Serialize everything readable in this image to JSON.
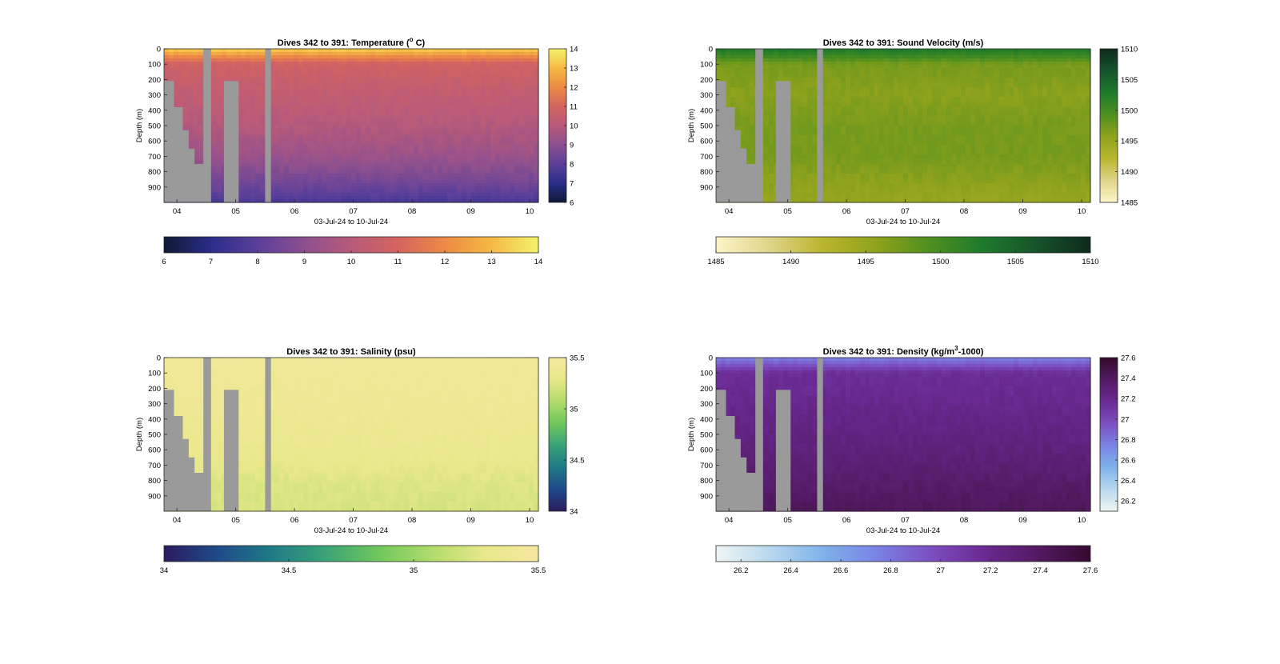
{
  "chart_data": [
    {
      "type": "heatmap",
      "title": "Dives 342 to 391: Temperature (° C)",
      "title_parts": {
        "main": "Dives 342 to 391: Temperature (",
        "sup": "o",
        "tail": " C)"
      },
      "xlabel": "03-Jul-24 to 10-Jul-24",
      "ylabel": "Depth (m)",
      "x_ticks": [
        "04",
        "05",
        "06",
        "07",
        "08",
        "09",
        "10"
      ],
      "y_ticks": [
        "0",
        "100",
        "200",
        "300",
        "400",
        "500",
        "600",
        "700",
        "800",
        "900"
      ],
      "ylim": [
        0,
        1000
      ],
      "colorbar": {
        "min": 6,
        "max": 14,
        "ticks": [
          "6",
          "7",
          "8",
          "9",
          "10",
          "11",
          "12",
          "13",
          "14"
        ],
        "colors": [
          "#0d1a33",
          "#2a2d8a",
          "#5b3f9a",
          "#8c4f8f",
          "#b85a7a",
          "#d4645f",
          "#ec8a45",
          "#f6b943",
          "#f3f36b"
        ]
      },
      "profile": [
        [
          0,
          13.5
        ],
        [
          30,
          12.6
        ],
        [
          70,
          11.5
        ],
        [
          100,
          10.8
        ],
        [
          300,
          10.3
        ],
        [
          500,
          9.9
        ],
        [
          700,
          9.3
        ],
        [
          850,
          8.6
        ],
        [
          950,
          8.0
        ],
        [
          1000,
          7.6
        ]
      ],
      "gaps": [
        {
          "day": 4.45,
          "width": 0.13,
          "from": 0,
          "to": 1000
        },
        {
          "day": 5.5,
          "width": 0.1,
          "from": 0,
          "to": 1000
        }
      ],
      "ground": [
        [
          3.85,
          210
        ],
        [
          3.95,
          380
        ],
        [
          4.1,
          530
        ],
        [
          4.2,
          650
        ],
        [
          4.3,
          750
        ],
        [
          4.57,
          960
        ],
        [
          4.8,
          210
        ],
        [
          5.05,
          210
        ]
      ]
    },
    {
      "type": "heatmap",
      "title": "Dives 342 to 391: Sound Velocity (m/s)",
      "xlabel": "03-Jul-24 to 10-Jul-24",
      "ylabel": "Depth (m)",
      "x_ticks": [
        "04",
        "05",
        "06",
        "07",
        "08",
        "09",
        "10"
      ],
      "y_ticks": [
        "0",
        "100",
        "200",
        "300",
        "400",
        "500",
        "600",
        "700",
        "800",
        "900"
      ],
      "ylim": [
        0,
        1000
      ],
      "colorbar": {
        "min": 1485,
        "max": 1510,
        "ticks": [
          "1485",
          "1490",
          "1495",
          "1500",
          "1505",
          "1510"
        ],
        "colors": [
          "#fcf5c8",
          "#e0d48a",
          "#b9b52d",
          "#8fa21c",
          "#4e8f1f",
          "#1e7a2c",
          "#16532b",
          "#0f2a1b"
        ]
      },
      "profile": [
        [
          0,
          1503
        ],
        [
          40,
          1501
        ],
        [
          100,
          1497
        ],
        [
          300,
          1496
        ],
        [
          500,
          1497
        ],
        [
          700,
          1497
        ],
        [
          850,
          1496
        ],
        [
          1000,
          1495
        ]
      ],
      "gaps": [
        {
          "day": 4.45,
          "width": 0.13,
          "from": 0,
          "to": 1000
        },
        {
          "day": 5.5,
          "width": 0.1,
          "from": 0,
          "to": 1000
        }
      ],
      "ground": [
        [
          3.85,
          210
        ],
        [
          3.95,
          380
        ],
        [
          4.1,
          530
        ],
        [
          4.2,
          650
        ],
        [
          4.3,
          750
        ],
        [
          4.57,
          960
        ],
        [
          4.8,
          210
        ],
        [
          5.05,
          210
        ]
      ]
    },
    {
      "type": "heatmap",
      "title": "Dives 342 to 391: Salinity (psu)",
      "xlabel": "03-Jul-24 to 10-Jul-24",
      "ylabel": "Depth (m)",
      "x_ticks": [
        "04",
        "05",
        "06",
        "07",
        "08",
        "09",
        "10"
      ],
      "y_ticks": [
        "0",
        "100",
        "200",
        "300",
        "400",
        "500",
        "600",
        "700",
        "800",
        "900"
      ],
      "ylim": [
        0,
        1000
      ],
      "colorbar": {
        "min": 34,
        "max": 35.5,
        "ticks": [
          "34",
          "34.5",
          "35",
          "35.5"
        ],
        "tick_values": [
          34,
          34.5,
          35,
          35.5
        ],
        "colors": [
          "#2a1b5e",
          "#1f4a8a",
          "#1f7a86",
          "#3aa278",
          "#6fc75c",
          "#b2db6c",
          "#e8e88a",
          "#f6e8a0"
        ]
      },
      "profile": [
        [
          0,
          35.42
        ],
        [
          300,
          35.38
        ],
        [
          600,
          35.33
        ],
        [
          800,
          35.25
        ],
        [
          1000,
          35.22
        ]
      ],
      "gaps": [
        {
          "day": 4.45,
          "width": 0.13,
          "from": 0,
          "to": 1000
        },
        {
          "day": 5.5,
          "width": 0.1,
          "from": 0,
          "to": 1000
        }
      ],
      "ground": [
        [
          3.85,
          210
        ],
        [
          3.95,
          380
        ],
        [
          4.1,
          530
        ],
        [
          4.2,
          650
        ],
        [
          4.3,
          750
        ],
        [
          4.57,
          960
        ],
        [
          4.8,
          210
        ],
        [
          5.05,
          210
        ]
      ]
    },
    {
      "type": "heatmap",
      "title": "Dives 342 to 391: Density (kg/m³-1000)",
      "title_parts": {
        "main": "Dives 342 to 391: Density (kg/m",
        "sup": "3",
        "tail": "-1000)"
      },
      "xlabel": "03-Jul-24 to 10-Jul-24",
      "ylabel": "Depth (m)",
      "x_ticks": [
        "04",
        "05",
        "06",
        "07",
        "08",
        "09",
        "10"
      ],
      "y_ticks": [
        "0",
        "100",
        "200",
        "300",
        "400",
        "500",
        "600",
        "700",
        "800",
        "900"
      ],
      "ylim": [
        0,
        1000
      ],
      "colorbar": {
        "min": 26.1,
        "max": 27.6,
        "ticks": [
          "26.2",
          "26.4",
          "26.6",
          "26.8",
          "27",
          "27.2",
          "27.4",
          "27.6"
        ],
        "tick_values": [
          26.2,
          26.4,
          26.6,
          26.8,
          27,
          27.2,
          27.4,
          27.6
        ],
        "colors": [
          "#eef6f4",
          "#b9d8ee",
          "#7fb2ea",
          "#7a83e4",
          "#7c4fc0",
          "#6a2a93",
          "#531a63",
          "#340a2e"
        ]
      },
      "profile": [
        [
          0,
          26.75
        ],
        [
          40,
          26.9
        ],
        [
          100,
          27.15
        ],
        [
          300,
          27.2
        ],
        [
          600,
          27.28
        ],
        [
          800,
          27.35
        ],
        [
          1000,
          27.42
        ]
      ],
      "gaps": [
        {
          "day": 4.45,
          "width": 0.13,
          "from": 0,
          "to": 1000
        },
        {
          "day": 5.5,
          "width": 0.1,
          "from": 0,
          "to": 1000
        }
      ],
      "ground": [
        [
          3.85,
          210
        ],
        [
          3.95,
          380
        ],
        [
          4.1,
          530
        ],
        [
          4.2,
          650
        ],
        [
          4.3,
          750
        ],
        [
          4.57,
          960
        ],
        [
          4.8,
          210
        ],
        [
          5.05,
          210
        ]
      ]
    }
  ]
}
